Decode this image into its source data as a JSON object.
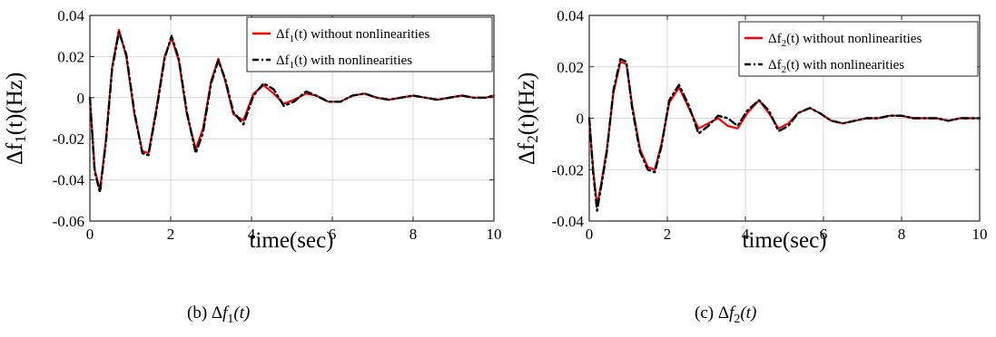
{
  "chart_data": [
    {
      "type": "line",
      "ylabel": "Δf1(t)(Hz)",
      "xlabel": "time(sec)",
      "xlim": [
        0,
        10
      ],
      "ylim": [
        -0.06,
        0.04
      ],
      "xticks": [
        0,
        2,
        4,
        6,
        8,
        10
      ],
      "xtick_labels": [
        "0",
        "2",
        "4",
        "6",
        "8",
        "10"
      ],
      "yticks": [
        -0.06,
        -0.04,
        -0.02,
        0,
        0.02,
        0.04
      ],
      "ytick_labels": [
        "-0.06",
        "-0.04",
        "-0.02",
        "0",
        "0.02",
        "0.04"
      ],
      "grid": true,
      "legend_position": "top-right",
      "caption_prefix": "(b)",
      "caption_math": "Δf1(t)",
      "series": [
        {
          "name": "Δf1(t) without nonlinearities",
          "color": "#ff0000",
          "style": "solid",
          "x": [
            0,
            0.12,
            0.25,
            0.4,
            0.55,
            0.72,
            0.9,
            1.1,
            1.3,
            1.45,
            1.65,
            1.85,
            2.02,
            2.2,
            2.4,
            2.62,
            2.8,
            3.0,
            3.18,
            3.35,
            3.55,
            3.8,
            4.05,
            4.3,
            4.55,
            4.8,
            5.05,
            5.35,
            5.6,
            5.9,
            6.2,
            6.5,
            6.8,
            7.1,
            7.4,
            7.7,
            8.0,
            8.3,
            8.6,
            8.9,
            9.2,
            9.5,
            9.8,
            10.0
          ],
          "y": [
            0,
            -0.035,
            -0.045,
            -0.02,
            0.015,
            0.033,
            0.02,
            -0.008,
            -0.026,
            -0.027,
            -0.005,
            0.02,
            0.029,
            0.018,
            -0.008,
            -0.025,
            -0.015,
            0.008,
            0.019,
            0.008,
            -0.008,
            -0.011,
            0.002,
            0.006,
            0.002,
            -0.003,
            -0.001,
            0.002,
            0.001,
            -0.002,
            -0.002,
            0.001,
            0.002,
            0.0,
            -0.001,
            0.0,
            0.001,
            0.0,
            -0.001,
            0.0,
            0.001,
            0.0,
            0.0,
            0.001
          ]
        },
        {
          "name": "Δf1(t) with nonlinearities",
          "color": "#000000",
          "style": "dash-dot",
          "x": [
            0,
            0.12,
            0.25,
            0.4,
            0.55,
            0.72,
            0.9,
            1.1,
            1.3,
            1.45,
            1.65,
            1.85,
            2.02,
            2.2,
            2.4,
            2.62,
            2.8,
            3.0,
            3.18,
            3.35,
            3.55,
            3.8,
            4.05,
            4.3,
            4.55,
            4.8,
            5.05,
            5.35,
            5.6,
            5.9,
            6.2,
            6.5,
            6.8,
            7.1,
            7.4,
            7.7,
            8.0,
            8.3,
            8.6,
            8.9,
            9.2,
            9.5,
            9.8,
            10.0
          ],
          "y": [
            0,
            -0.036,
            -0.046,
            -0.021,
            0.014,
            0.032,
            0.021,
            -0.007,
            -0.027,
            -0.028,
            -0.006,
            0.019,
            0.03,
            0.019,
            -0.007,
            -0.027,
            -0.017,
            0.007,
            0.018,
            0.009,
            -0.007,
            -0.013,
            0.001,
            0.007,
            0.004,
            -0.004,
            -0.002,
            0.003,
            0.001,
            -0.002,
            -0.002,
            0.001,
            0.002,
            0.0,
            -0.001,
            0.0,
            0.001,
            0.0,
            -0.001,
            0.0,
            0.001,
            0.0,
            0.0,
            0.001
          ]
        }
      ]
    },
    {
      "type": "line",
      "ylabel": "Δf2(t)(Hz)",
      "xlabel": "time(sec)",
      "xlim": [
        0,
        10
      ],
      "ylim": [
        -0.04,
        0.04
      ],
      "xticks": [
        0,
        2,
        4,
        6,
        8,
        10
      ],
      "xtick_labels": [
        "0",
        "2",
        "4",
        "6",
        "8",
        "10"
      ],
      "yticks": [
        -0.04,
        -0.02,
        0,
        0.02,
        0.04
      ],
      "ytick_labels": [
        "-0.04",
        "-0.02",
        "0",
        "0.02",
        "0.04"
      ],
      "grid": true,
      "legend_position": "top-right",
      "caption_prefix": "(c)",
      "caption_math": "Δf2(t)",
      "series": [
        {
          "name": "Δf2(t) without nonlinearities",
          "color": "#ff0000",
          "style": "solid",
          "x": [
            0,
            0.1,
            0.2,
            0.3,
            0.45,
            0.62,
            0.8,
            0.95,
            1.1,
            1.3,
            1.5,
            1.68,
            1.85,
            2.05,
            2.3,
            2.55,
            2.8,
            3.05,
            3.3,
            3.55,
            3.8,
            4.05,
            4.35,
            4.6,
            4.85,
            5.1,
            5.35,
            5.65,
            5.9,
            6.2,
            6.5,
            6.8,
            7.1,
            7.4,
            7.7,
            8.0,
            8.3,
            8.6,
            8.9,
            9.2,
            9.5,
            9.8,
            10.0
          ],
          "y": [
            0,
            -0.02,
            -0.034,
            -0.026,
            -0.012,
            0.01,
            0.022,
            0.021,
            0.005,
            -0.012,
            -0.019,
            -0.02,
            -0.01,
            0.006,
            0.012,
            0.004,
            -0.004,
            -0.002,
            0.0,
            -0.003,
            -0.004,
            0.002,
            0.007,
            0.002,
            -0.004,
            -0.002,
            0.002,
            0.004,
            0.002,
            -0.001,
            -0.002,
            -0.001,
            0.0,
            0.0,
            0.001,
            0.001,
            0.0,
            0.0,
            0.0,
            -0.001,
            0.0,
            0.0,
            0.0
          ]
        },
        {
          "name": "Δf2(t) with nonlinearities",
          "color": "#000000",
          "style": "dash-dot",
          "x": [
            0,
            0.1,
            0.2,
            0.3,
            0.45,
            0.62,
            0.8,
            0.95,
            1.1,
            1.3,
            1.5,
            1.68,
            1.85,
            2.05,
            2.3,
            2.55,
            2.8,
            3.05,
            3.3,
            3.55,
            3.8,
            4.05,
            4.35,
            4.6,
            4.85,
            5.1,
            5.35,
            5.65,
            5.9,
            6.2,
            6.5,
            6.8,
            7.1,
            7.4,
            7.7,
            8.0,
            8.3,
            8.6,
            8.9,
            9.2,
            9.5,
            9.8,
            10.0
          ],
          "y": [
            0,
            -0.021,
            -0.036,
            -0.027,
            -0.013,
            0.011,
            0.023,
            0.022,
            0.004,
            -0.013,
            -0.02,
            -0.021,
            -0.011,
            0.007,
            0.013,
            0.005,
            -0.006,
            -0.003,
            0.001,
            0.0,
            -0.003,
            0.003,
            0.007,
            0.003,
            -0.005,
            -0.003,
            0.002,
            0.004,
            0.002,
            -0.001,
            -0.002,
            -0.001,
            0.0,
            0.0,
            0.001,
            0.001,
            0.0,
            0.0,
            0.0,
            -0.001,
            0.0,
            0.0,
            0.0
          ]
        }
      ]
    }
  ]
}
